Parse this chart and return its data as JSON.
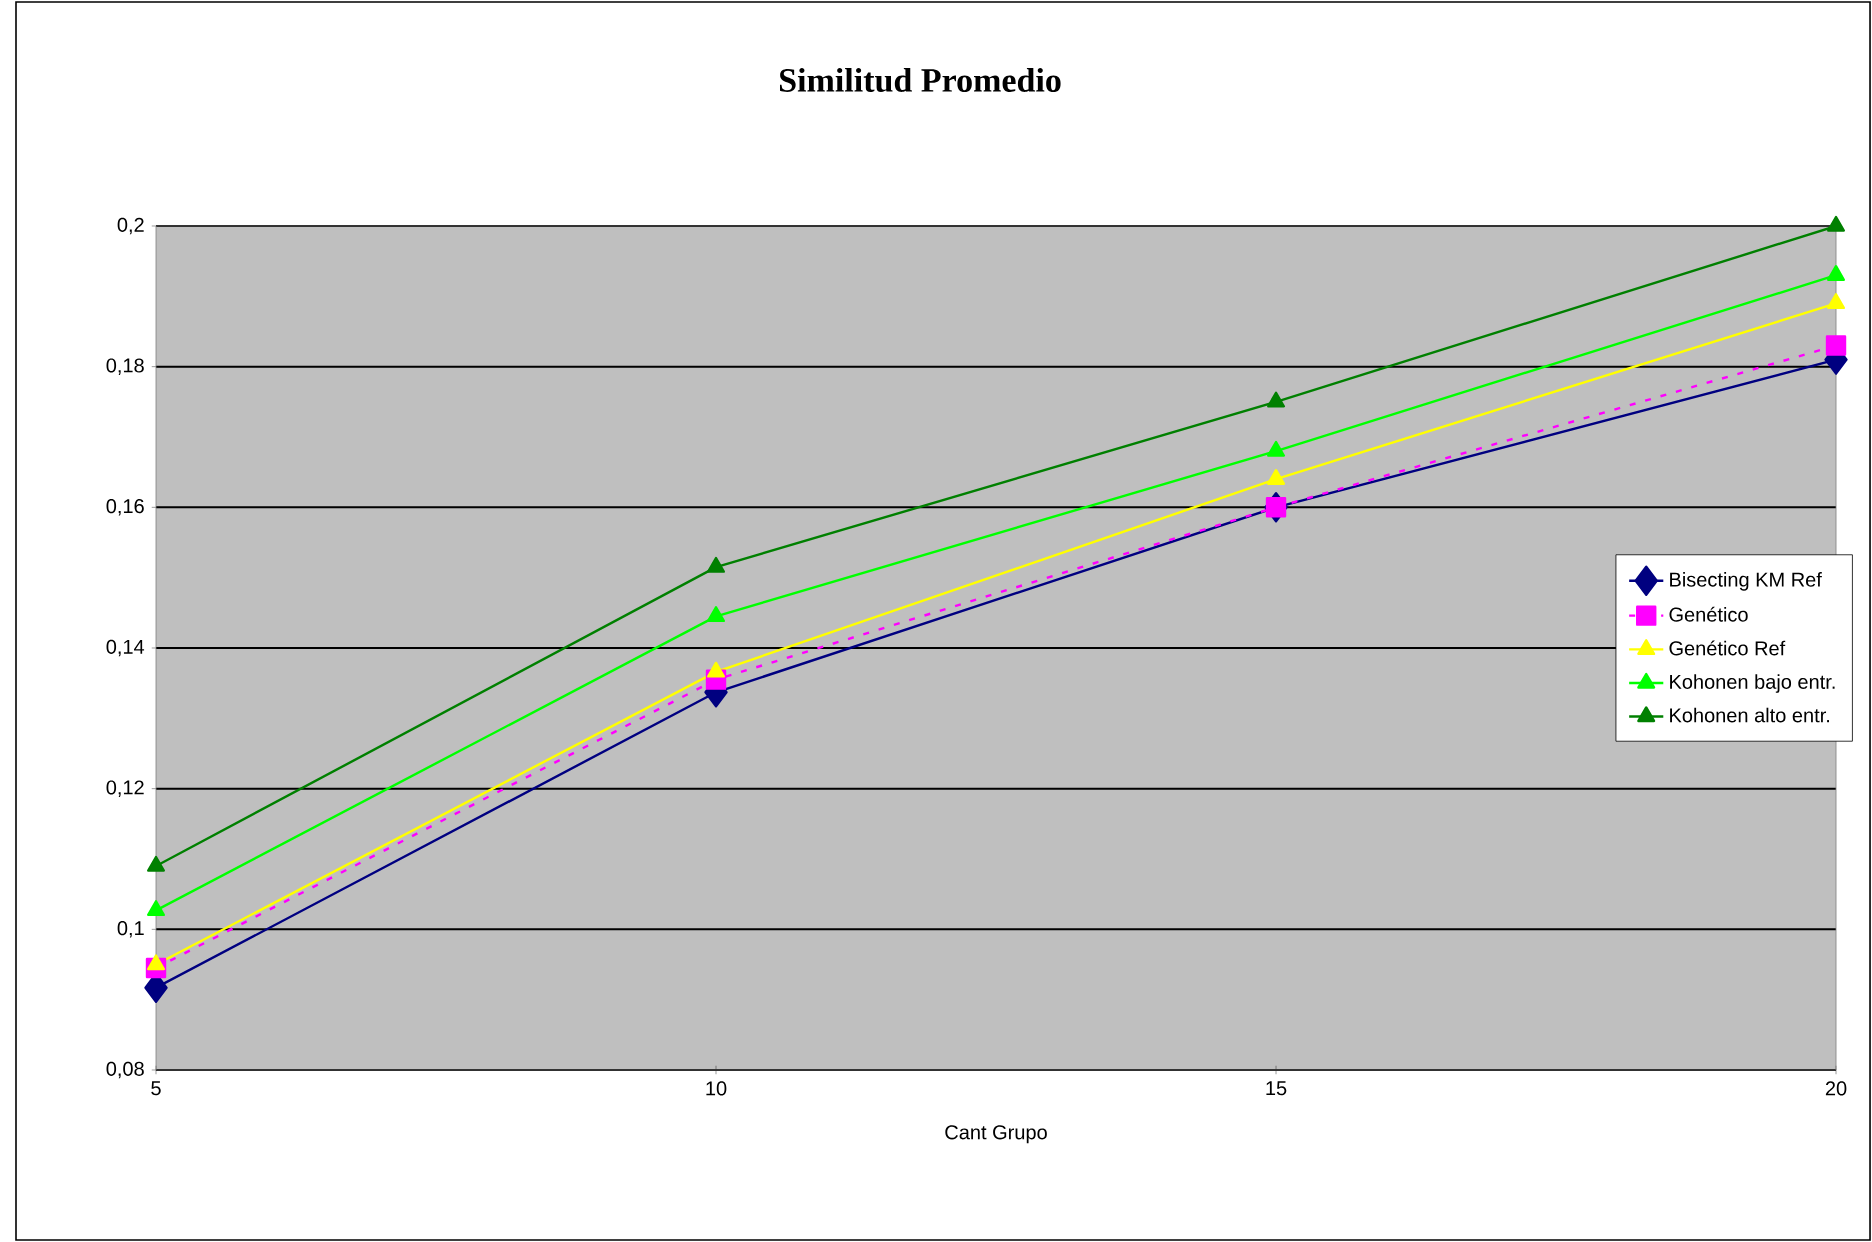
{
  "chart_data": {
    "type": "line",
    "title": "Similitud Promedio",
    "xlabel": "Cant Grupo",
    "x": [
      5,
      10,
      15,
      20
    ],
    "series": [
      {
        "name": "Bisecting KM Ref",
        "color": "#000080",
        "marker": "diamond",
        "line_style": "solid",
        "values": [
          0.0917,
          0.1337,
          0.16,
          0.181
        ]
      },
      {
        "name": "Genético",
        "color": "#ff00ff",
        "marker": "square",
        "line_style": "dashed",
        "values": [
          0.0945,
          0.1355,
          0.16,
          0.183
        ]
      },
      {
        "name": "Genético Ref",
        "color": "#ffff00",
        "marker": "triangle",
        "line_style": "solid",
        "values": [
          0.095,
          0.1366,
          0.164,
          0.189
        ]
      },
      {
        "name": "Kohonen bajo entr.",
        "color": "#00ff00",
        "marker": "triangle",
        "line_style": "solid",
        "values": [
          0.1027,
          0.1445,
          0.168,
          0.193
        ]
      },
      {
        "name": "Kohonen alto entr.",
        "color": "#008000",
        "marker": "triangle",
        "line_style": "solid",
        "values": [
          0.109,
          0.1515,
          0.175,
          0.2
        ]
      }
    ],
    "xlim": [
      5,
      20
    ],
    "xticks": [
      5,
      10,
      15,
      20
    ],
    "ylim": [
      0.08,
      0.2
    ],
    "yticks": [
      {
        "value": 0.08,
        "label": "0,08"
      },
      {
        "value": 0.1,
        "label": "0,1"
      },
      {
        "value": 0.12,
        "label": "0,12"
      },
      {
        "value": 0.14,
        "label": "0,14"
      },
      {
        "value": 0.16,
        "label": "0,16"
      },
      {
        "value": 0.18,
        "label": "0,18"
      },
      {
        "value": 0.2,
        "label": "0,2"
      }
    ],
    "grid": "y",
    "legend": "right"
  }
}
